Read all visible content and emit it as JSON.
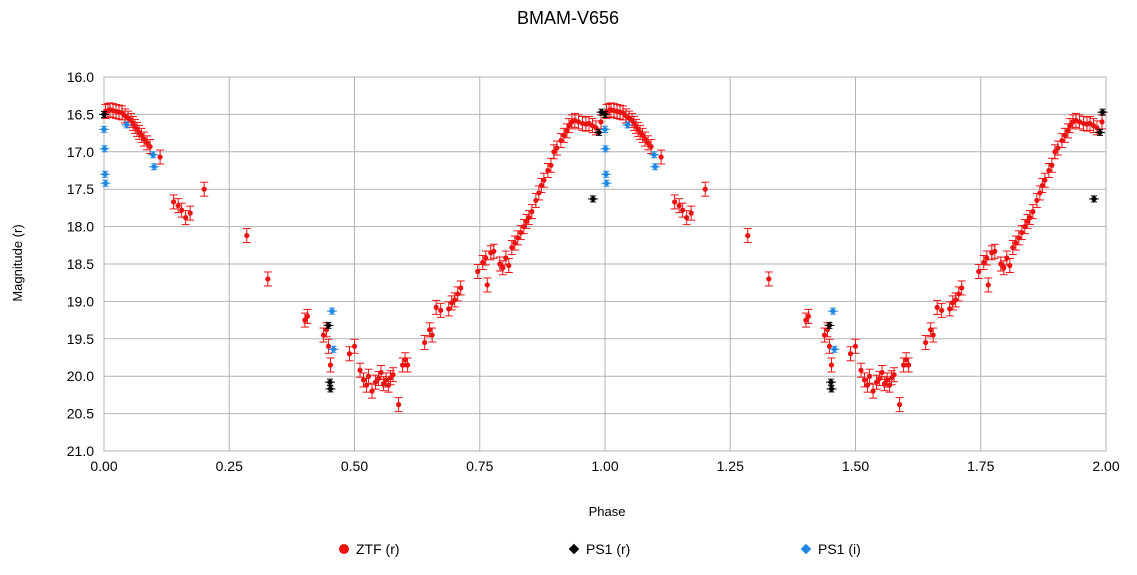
{
  "chart_data": {
    "type": "scatter",
    "title": "BMAM-V656",
    "xlabel": "Phase",
    "ylabel": "Magnitude (r)",
    "xlim": [
      0,
      2
    ],
    "ylim": [
      16.0,
      21.0
    ],
    "y_inverted": true,
    "xticks": [
      "0.00",
      "0.25",
      "0.50",
      "0.75",
      "1.00",
      "1.25",
      "1.50",
      "1.75",
      "2.00"
    ],
    "yticks": [
      "16.0",
      "16.5",
      "17.0",
      "17.5",
      "18.0",
      "18.5",
      "19.0",
      "19.5",
      "20.0",
      "20.5",
      "21.0"
    ],
    "grid": true,
    "legend_position": "bottom",
    "series": [
      {
        "name": "ZTF (r)",
        "color": "#ee1111",
        "marker": "circle",
        "points": [
          [
            0.003,
            16.46
          ],
          [
            0.008,
            16.45
          ],
          [
            0.012,
            16.44
          ],
          [
            0.018,
            16.45
          ],
          [
            0.024,
            16.46
          ],
          [
            0.03,
            16.47
          ],
          [
            0.036,
            16.48
          ],
          [
            0.042,
            16.52
          ],
          [
            0.048,
            16.55
          ],
          [
            0.054,
            16.58
          ],
          [
            0.058,
            16.62
          ],
          [
            0.062,
            16.66
          ],
          [
            0.066,
            16.7
          ],
          [
            0.07,
            16.74
          ],
          [
            0.075,
            16.78
          ],
          [
            0.08,
            16.83
          ],
          [
            0.086,
            16.88
          ],
          [
            0.092,
            16.93
          ],
          [
            0.112,
            17.07
          ],
          [
            0.139,
            17.67
          ],
          [
            0.148,
            17.72
          ],
          [
            0.155,
            17.78
          ],
          [
            0.163,
            17.88
          ],
          [
            0.172,
            17.82
          ],
          [
            0.2,
            17.5
          ],
          [
            0.285,
            18.12
          ],
          [
            0.327,
            18.7
          ],
          [
            0.401,
            19.25
          ],
          [
            0.406,
            19.2
          ],
          [
            0.438,
            19.45
          ],
          [
            0.444,
            19.38
          ],
          [
            0.448,
            19.6
          ],
          [
            0.452,
            19.85
          ],
          [
            0.49,
            19.7
          ],
          [
            0.5,
            19.6
          ],
          [
            0.511,
            19.92
          ],
          [
            0.518,
            20.05
          ],
          [
            0.524,
            20.12
          ],
          [
            0.528,
            20.0
          ],
          [
            0.535,
            20.2
          ],
          [
            0.542,
            20.08
          ],
          [
            0.548,
            20.03
          ],
          [
            0.553,
            19.95
          ],
          [
            0.558,
            20.1
          ],
          [
            0.563,
            20.05
          ],
          [
            0.568,
            20.12
          ],
          [
            0.572,
            20.02
          ],
          [
            0.577,
            19.98
          ],
          [
            0.588,
            20.38
          ],
          [
            0.596,
            19.85
          ],
          [
            0.601,
            19.78
          ],
          [
            0.606,
            19.85
          ],
          [
            0.64,
            19.55
          ],
          [
            0.65,
            19.38
          ],
          [
            0.655,
            19.45
          ],
          [
            0.663,
            19.08
          ],
          [
            0.672,
            19.12
          ],
          [
            0.688,
            19.1
          ],
          [
            0.694,
            19.02
          ],
          [
            0.7,
            18.98
          ],
          [
            0.706,
            18.9
          ],
          [
            0.712,
            18.82
          ],
          [
            0.746,
            18.6
          ],
          [
            0.756,
            18.48
          ],
          [
            0.762,
            18.42
          ],
          [
            0.765,
            18.78
          ],
          [
            0.772,
            18.35
          ],
          [
            0.778,
            18.33
          ],
          [
            0.79,
            18.5
          ],
          [
            0.796,
            18.55
          ],
          [
            0.802,
            18.42
          ],
          [
            0.808,
            18.52
          ],
          [
            0.814,
            18.28
          ],
          [
            0.82,
            18.22
          ],
          [
            0.826,
            18.15
          ],
          [
            0.832,
            18.08
          ],
          [
            0.838,
            18.0
          ],
          [
            0.843,
            17.93
          ],
          [
            0.848,
            17.88
          ],
          [
            0.854,
            17.8
          ],
          [
            0.862,
            17.65
          ],
          [
            0.868,
            17.55
          ],
          [
            0.873,
            17.45
          ],
          [
            0.878,
            17.38
          ],
          [
            0.886,
            17.25
          ],
          [
            0.892,
            17.18
          ],
          [
            0.898,
            17.0
          ],
          [
            0.904,
            16.95
          ],
          [
            0.912,
            16.85
          ],
          [
            0.918,
            16.78
          ],
          [
            0.924,
            16.72
          ],
          [
            0.928,
            16.65
          ],
          [
            0.934,
            16.6
          ],
          [
            0.94,
            16.58
          ],
          [
            0.947,
            16.6
          ],
          [
            0.955,
            16.62
          ],
          [
            0.962,
            16.63
          ],
          [
            0.968,
            16.62
          ],
          [
            0.975,
            16.65
          ],
          [
            0.982,
            16.68
          ],
          [
            0.992,
            16.6
          ],
          [
            1.003,
            16.46
          ],
          [
            1.008,
            16.45
          ],
          [
            1.012,
            16.44
          ],
          [
            1.018,
            16.45
          ],
          [
            1.024,
            16.46
          ],
          [
            1.03,
            16.47
          ],
          [
            1.036,
            16.48
          ],
          [
            1.042,
            16.52
          ],
          [
            1.048,
            16.55
          ],
          [
            1.054,
            16.58
          ],
          [
            1.058,
            16.62
          ],
          [
            1.062,
            16.66
          ],
          [
            1.066,
            16.7
          ],
          [
            1.07,
            16.74
          ],
          [
            1.075,
            16.78
          ],
          [
            1.08,
            16.83
          ],
          [
            1.086,
            16.88
          ],
          [
            1.092,
            16.93
          ],
          [
            1.112,
            17.07
          ],
          [
            1.139,
            17.67
          ],
          [
            1.148,
            17.72
          ],
          [
            1.155,
            17.78
          ],
          [
            1.163,
            17.88
          ],
          [
            1.172,
            17.82
          ],
          [
            1.2,
            17.5
          ],
          [
            1.285,
            18.12
          ],
          [
            1.327,
            18.7
          ],
          [
            1.401,
            19.25
          ],
          [
            1.406,
            19.2
          ],
          [
            1.438,
            19.45
          ],
          [
            1.444,
            19.38
          ],
          [
            1.448,
            19.6
          ],
          [
            1.452,
            19.85
          ],
          [
            1.49,
            19.7
          ],
          [
            1.5,
            19.6
          ],
          [
            1.511,
            19.92
          ],
          [
            1.518,
            20.05
          ],
          [
            1.524,
            20.12
          ],
          [
            1.528,
            20.0
          ],
          [
            1.535,
            20.2
          ],
          [
            1.542,
            20.08
          ],
          [
            1.548,
            20.03
          ],
          [
            1.553,
            19.95
          ],
          [
            1.558,
            20.1
          ],
          [
            1.563,
            20.05
          ],
          [
            1.568,
            20.12
          ],
          [
            1.572,
            20.02
          ],
          [
            1.577,
            19.98
          ],
          [
            1.588,
            20.38
          ],
          [
            1.596,
            19.85
          ],
          [
            1.601,
            19.78
          ],
          [
            1.606,
            19.85
          ],
          [
            1.64,
            19.55
          ],
          [
            1.65,
            19.38
          ],
          [
            1.655,
            19.45
          ],
          [
            1.663,
            19.08
          ],
          [
            1.672,
            19.12
          ],
          [
            1.688,
            19.1
          ],
          [
            1.694,
            19.02
          ],
          [
            1.7,
            18.98
          ],
          [
            1.706,
            18.9
          ],
          [
            1.712,
            18.82
          ],
          [
            1.746,
            18.6
          ],
          [
            1.756,
            18.48
          ],
          [
            1.762,
            18.42
          ],
          [
            1.765,
            18.78
          ],
          [
            1.772,
            18.35
          ],
          [
            1.778,
            18.33
          ],
          [
            1.79,
            18.5
          ],
          [
            1.796,
            18.55
          ],
          [
            1.802,
            18.42
          ],
          [
            1.808,
            18.52
          ],
          [
            1.814,
            18.28
          ],
          [
            1.82,
            18.22
          ],
          [
            1.826,
            18.15
          ],
          [
            1.832,
            18.08
          ],
          [
            1.838,
            18.0
          ],
          [
            1.843,
            17.93
          ],
          [
            1.848,
            17.88
          ],
          [
            1.854,
            17.8
          ],
          [
            1.862,
            17.65
          ],
          [
            1.868,
            17.55
          ],
          [
            1.873,
            17.45
          ],
          [
            1.878,
            17.38
          ],
          [
            1.886,
            17.25
          ],
          [
            1.892,
            17.18
          ],
          [
            1.898,
            17.0
          ],
          [
            1.904,
            16.95
          ],
          [
            1.912,
            16.85
          ],
          [
            1.918,
            16.78
          ],
          [
            1.924,
            16.72
          ],
          [
            1.928,
            16.65
          ],
          [
            1.934,
            16.6
          ],
          [
            1.94,
            16.58
          ],
          [
            1.947,
            16.6
          ],
          [
            1.955,
            16.62
          ],
          [
            1.962,
            16.63
          ],
          [
            1.968,
            16.62
          ],
          [
            1.975,
            16.65
          ],
          [
            1.982,
            16.68
          ],
          [
            1.992,
            16.6
          ]
        ]
      },
      {
        "name": "PS1 (r)",
        "color": "#000000",
        "marker": "diamond",
        "points": [
          [
            0.0,
            16.5
          ],
          [
            0.448,
            19.32
          ],
          [
            0.451,
            20.08
          ],
          [
            0.452,
            20.17
          ],
          [
            0.976,
            17.63
          ],
          [
            0.988,
            16.74
          ],
          [
            0.993,
            16.47
          ],
          [
            1.0,
            16.5
          ],
          [
            1.448,
            19.32
          ],
          [
            1.451,
            20.08
          ],
          [
            1.452,
            20.17
          ],
          [
            1.976,
            17.63
          ],
          [
            1.988,
            16.74
          ],
          [
            1.993,
            16.47
          ]
        ]
      },
      {
        "name": "PS1 (i)",
        "color": "#1e88e5",
        "marker": "diamond",
        "points": [
          [
            0.0,
            16.7
          ],
          [
            0.001,
            16.96
          ],
          [
            0.002,
            17.3
          ],
          [
            0.003,
            17.42
          ],
          [
            0.045,
            16.64
          ],
          [
            0.098,
            17.04
          ],
          [
            0.1,
            17.2
          ],
          [
            0.455,
            19.13
          ],
          [
            0.458,
            19.64
          ],
          [
            1.0,
            16.7
          ],
          [
            1.001,
            16.96
          ],
          [
            1.002,
            17.3
          ],
          [
            1.003,
            17.42
          ],
          [
            1.045,
            16.64
          ],
          [
            1.098,
            17.04
          ],
          [
            1.1,
            17.2
          ],
          [
            1.455,
            19.13
          ],
          [
            1.458,
            19.64
          ]
        ]
      }
    ]
  }
}
